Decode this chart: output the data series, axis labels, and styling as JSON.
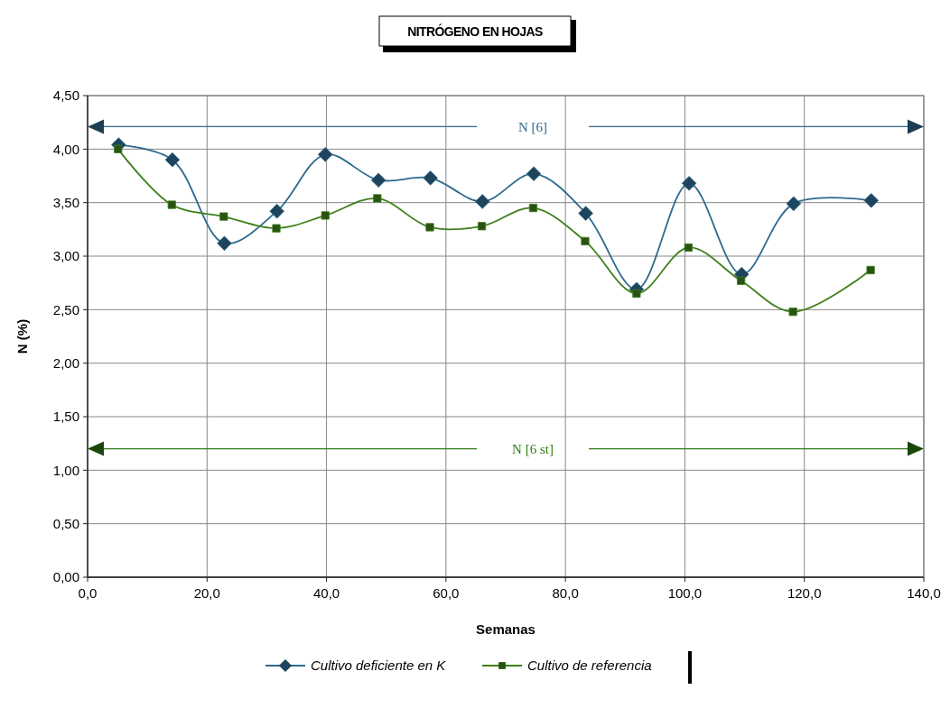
{
  "chart_data": {
    "type": "line",
    "title": "NITRÓGENO EN HOJAS",
    "xlabel": "Semanas",
    "ylabel": "N (%)",
    "series": [
      {
        "name": "Cultivo deficiente en K",
        "color": "#2e6a8e",
        "marker": "diamond",
        "x": [
          5.2,
          14.2,
          22.9,
          31.7,
          39.8,
          48.7,
          57.4,
          66.1,
          74.7,
          83.4,
          91.9,
          100.7,
          109.5,
          118.2,
          131.2
        ],
        "values": [
          4.04,
          3.9,
          3.12,
          3.42,
          3.95,
          3.71,
          3.73,
          3.51,
          3.77,
          3.4,
          2.69,
          3.68,
          2.83,
          3.49,
          3.52
        ]
      },
      {
        "name": "Cultivo de referencia",
        "color": "#3f7f1c",
        "marker": "square",
        "x": [
          5.1,
          14.1,
          22.8,
          31.6,
          39.8,
          48.5,
          57.3,
          66.0,
          74.6,
          83.3,
          91.9,
          100.6,
          109.4,
          118.1,
          131.1
        ],
        "values": [
          4.0,
          3.48,
          3.37,
          3.26,
          3.38,
          3.54,
          3.27,
          3.28,
          3.45,
          3.14,
          2.65,
          3.08,
          2.77,
          2.48,
          2.87
        ]
      }
    ],
    "xlim": [
      0,
      140
    ],
    "xticks": [
      {
        "value": 0,
        "label": "0,0"
      },
      {
        "value": 20,
        "label": "20,0"
      },
      {
        "value": 40,
        "label": "40,0"
      },
      {
        "value": 60,
        "label": "60,0"
      },
      {
        "value": 80,
        "label": "80,0"
      },
      {
        "value": 100,
        "label": "100,0"
      },
      {
        "value": 120,
        "label": "120,0"
      },
      {
        "value": 140,
        "label": "140,0"
      }
    ],
    "ylim": [
      0,
      4.5
    ],
    "yticks": [
      {
        "value": 0,
        "label": "0,00"
      },
      {
        "value": 0.5,
        "label": "0,50"
      },
      {
        "value": 1,
        "label": "1,00"
      },
      {
        "value": 1.5,
        "label": "1,50"
      },
      {
        "value": 2,
        "label": "2,00"
      },
      {
        "value": 2.5,
        "label": "2,50"
      },
      {
        "value": 3,
        "label": "3,00"
      },
      {
        "value": 3.5,
        "label": "3,50"
      },
      {
        "value": 4,
        "label": "4,00"
      },
      {
        "value": 4.5,
        "label": "4,50"
      }
    ],
    "ref_lines": [
      {
        "axis": "y",
        "value": 4.21,
        "label": "N [6]",
        "color": "#2e6a8e"
      },
      {
        "axis": "y",
        "value": 1.2,
        "label": "N [6 st]",
        "color": "#2f7a12"
      }
    ],
    "grid": true,
    "legend": "bottom",
    "line_style": "solid"
  }
}
